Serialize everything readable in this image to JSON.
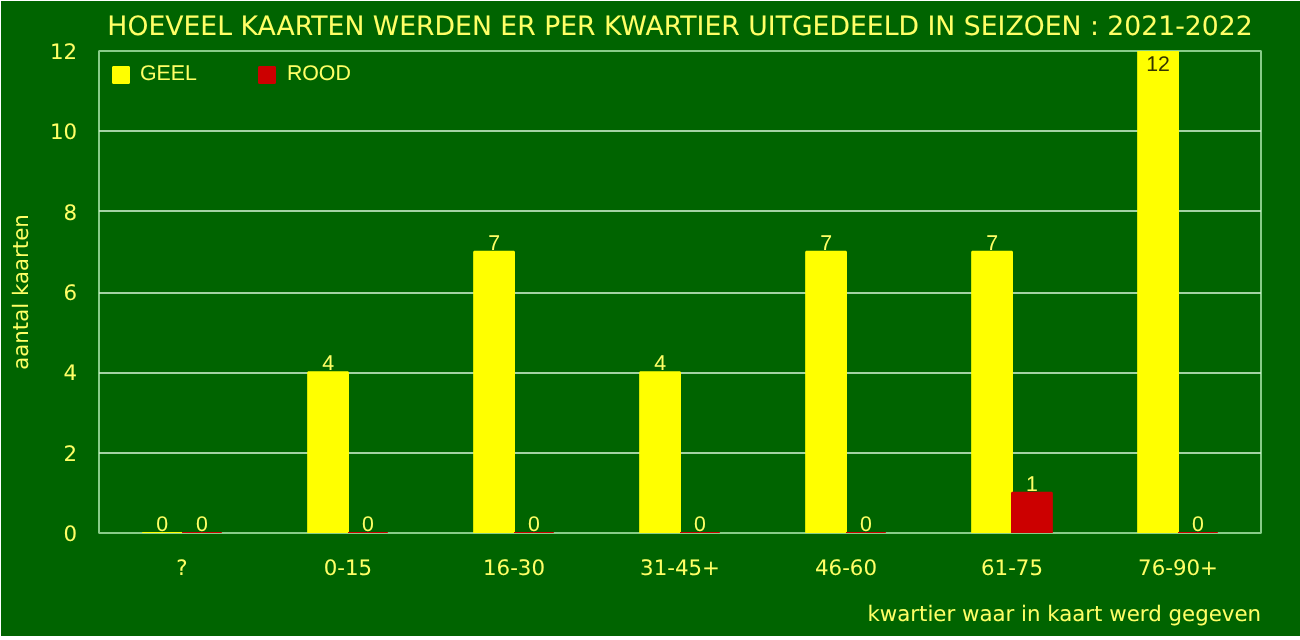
{
  "chart_data": {
    "type": "bar",
    "title": "HOEVEEL KAARTEN WERDEN ER PER KWARTIER UITGEDEELD IN SEIZOEN : 2021-2022",
    "xlabel": "kwartier waar in kaart werd gegeven",
    "ylabel": "aantal kaarten",
    "categories": [
      "?",
      "0-15",
      "16-30",
      "31-45+",
      "46-60",
      "61-75",
      "76-90+"
    ],
    "series": [
      {
        "name": "GEEL",
        "color": "#ffff00",
        "values": [
          0,
          4,
          7,
          4,
          7,
          7,
          12
        ]
      },
      {
        "name": "ROOD",
        "color": "#cc0000",
        "values": [
          0,
          0,
          0,
          0,
          0,
          1,
          0
        ]
      }
    ],
    "ylim": [
      0,
      12
    ],
    "yticks": [
      0,
      2,
      4,
      6,
      8,
      10,
      12
    ],
    "grid": "y",
    "legend": "top left",
    "data_labels": true
  }
}
